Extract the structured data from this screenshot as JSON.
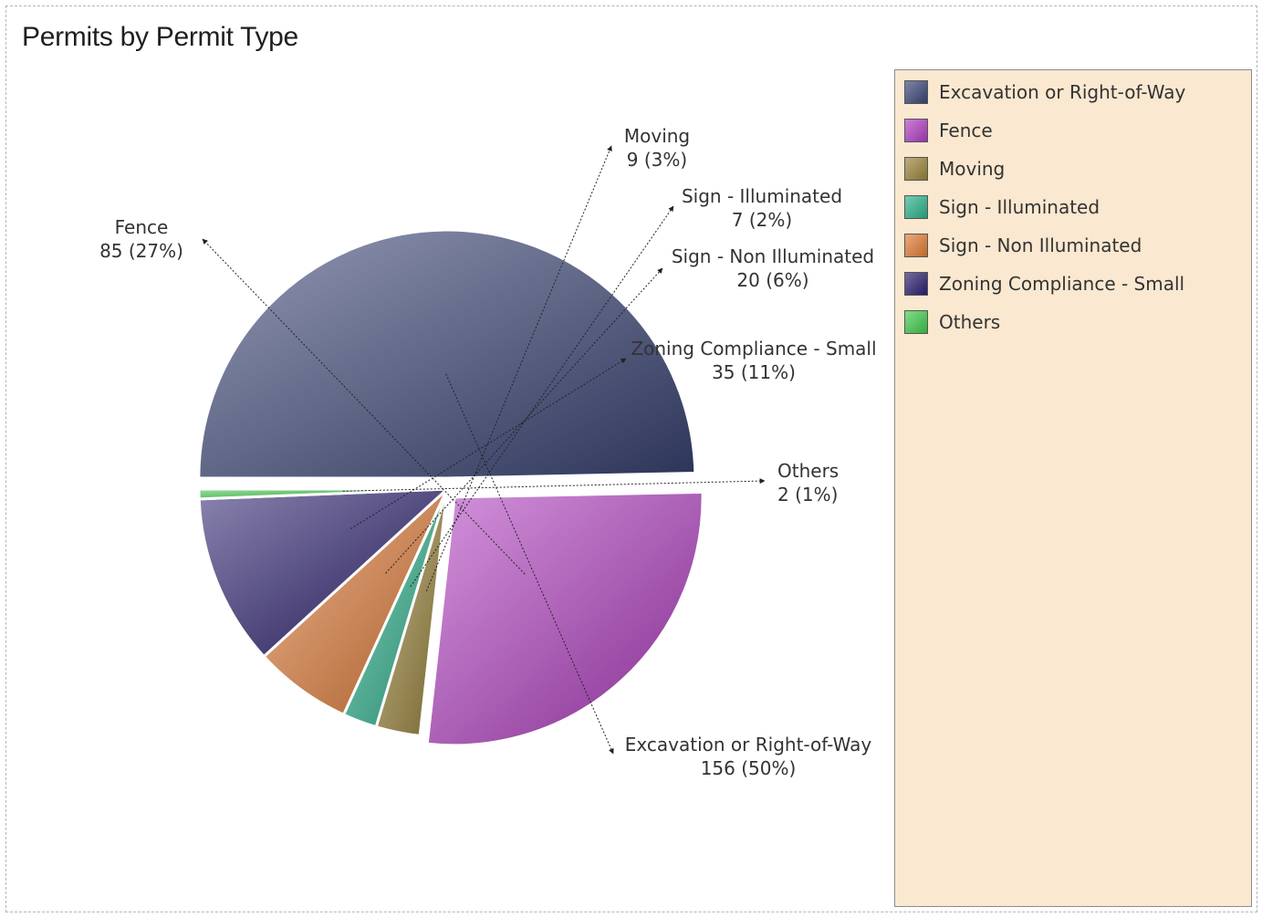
{
  "chart_data": {
    "type": "pie",
    "title": "Permits by Permit Type",
    "slices": [
      {
        "name": "Excavation or Right-of-Way",
        "value": 156,
        "percent_label": "(50%)",
        "color": "#3a4577"
      },
      {
        "name": "Fence",
        "value": 85,
        "percent_label": "(27%)",
        "color": "#b03cc0"
      },
      {
        "name": "Moving",
        "value": 9,
        "percent_label": "(3%)",
        "color": "#9a8338"
      },
      {
        "name": "Sign - Illuminated",
        "value": 7,
        "percent_label": "(2%)",
        "color": "#2bb08a"
      },
      {
        "name": "Sign - Non Illuminated",
        "value": 20,
        "percent_label": "(6%)",
        "color": "#e07a35"
      },
      {
        "name": "Zoning Compliance - Small",
        "value": 35,
        "percent_label": "(11%)",
        "color": "#2a1f6e"
      },
      {
        "name": "Others",
        "value": 2,
        "percent_label": "(1%)",
        "color": "#3ec94a"
      }
    ],
    "legend_position": "right",
    "exploded_slices": [
      "Excavation or Right-of-Way",
      "Fence"
    ]
  }
}
